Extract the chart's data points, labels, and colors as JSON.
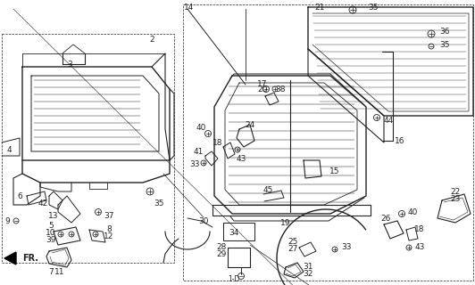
{
  "bg_color": "#ffffff",
  "line_color": "#222222",
  "fig_width": 5.32,
  "fig_height": 3.2,
  "dpi": 100
}
